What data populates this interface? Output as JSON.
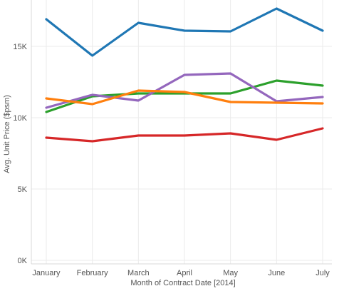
{
  "chart_data": {
    "type": "line",
    "title": "",
    "xlabel": "Month of Contract Date [2014]",
    "ylabel": "Avg. Unit Price ($psm)",
    "categories": [
      "January",
      "February",
      "March",
      "April",
      "May",
      "June",
      "July"
    ],
    "ylim": [
      0,
      18000
    ],
    "yticks": [
      0,
      5000,
      10000,
      15000
    ],
    "ytick_labels": [
      "0K",
      "5K",
      "10K",
      "15K"
    ],
    "grid": true,
    "legend": "none",
    "series": [
      {
        "color": "#1f77b4",
        "values": [
          16900,
          14350,
          16650,
          16100,
          16050,
          17650,
          16100
        ]
      },
      {
        "color": "#2ca02c",
        "values": [
          10400,
          11500,
          11700,
          11700,
          11700,
          12600,
          12250
        ]
      },
      {
        "color": "#9467bd",
        "values": [
          10700,
          11600,
          11200,
          13000,
          13100,
          11150,
          11450
        ]
      },
      {
        "color": "#ff7f0e",
        "values": [
          11350,
          10950,
          11900,
          11800,
          11100,
          11050,
          11000
        ]
      },
      {
        "color": "#d62728",
        "values": [
          8600,
          8350,
          8750,
          8750,
          8900,
          8450,
          9250
        ]
      }
    ]
  }
}
